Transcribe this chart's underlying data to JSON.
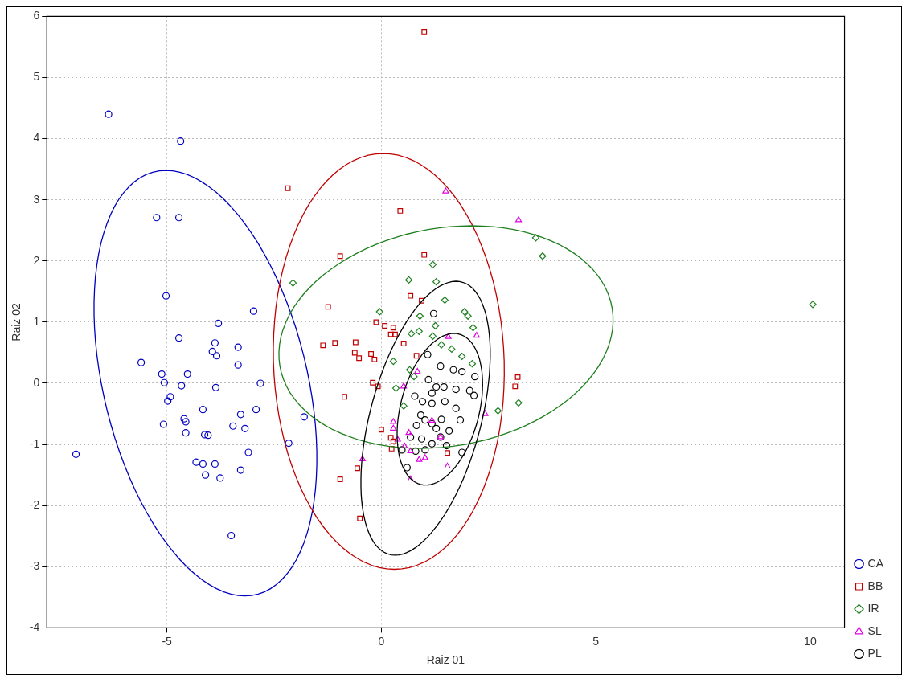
{
  "chart_data": {
    "type": "scatter",
    "xlabel": "Raiz 01",
    "ylabel": "Raiz 02",
    "xlim": [
      -7.8,
      10.8
    ],
    "ylim": [
      -4,
      6
    ],
    "xticks": [
      -5,
      0,
      5,
      10
    ],
    "yticks": [
      -4,
      -3,
      -2,
      -1,
      0,
      1,
      2,
      3,
      4,
      5,
      6
    ],
    "grid": true,
    "legend": "bottom right",
    "series": [
      {
        "name": "CA",
        "color": "#0000c0",
        "marker": "circle",
        "x": [
          -6.36,
          -4.68,
          -5.24,
          -4.72,
          -5.02,
          -2.98,
          -3.8,
          -4.72,
          -3.88,
          -3.34,
          -3.94,
          -3.84,
          -3.34,
          -5.6,
          -5.12,
          -4.52,
          -2.82,
          -5.06,
          -4.66,
          -3.86,
          -4.92,
          -4.98,
          -3.28,
          -2.92,
          -4.16,
          -4.6,
          -5.08,
          -4.56,
          -3.46,
          -3.18,
          -1.8,
          -4.56,
          -4.12,
          -4.04,
          -3.1,
          -7.12,
          -2.16,
          -4.32,
          -4.16,
          -3.88,
          -3.28,
          -4.1,
          -3.76,
          -3.5
        ],
        "values": [
          4.4,
          3.96,
          2.71,
          2.71,
          1.43,
          1.18,
          0.98,
          0.74,
          0.66,
          0.59,
          0.52,
          0.45,
          0.3,
          0.34,
          0.15,
          0.15,
          0,
          0.01,
          -0.04,
          -0.07,
          -0.22,
          -0.29,
          -0.51,
          -0.43,
          -0.43,
          -0.58,
          -0.67,
          -0.63,
          -0.7,
          -0.74,
          -0.55,
          -0.81,
          -0.84,
          -0.85,
          -1.13,
          -1.16,
          -0.98,
          -1.29,
          -1.32,
          -1.32,
          -1.42,
          -1.5,
          -1.55,
          -2.49
        ]
      },
      {
        "name": "BB",
        "color": "#c00000",
        "marker": "square",
        "x": [
          1.0,
          -2.18,
          0.44,
          1.0,
          -0.96,
          -1.24,
          0.68,
          0.94,
          -1.36,
          -1.08,
          -0.6,
          -0.12,
          0.08,
          0.28,
          -0.62,
          -0.52,
          -0.24,
          -0.16,
          0.22,
          0.32,
          -0.2,
          -0.08,
          -0.86,
          0,
          3.18,
          3.12,
          0.24,
          0.22,
          -0.96,
          -0.56,
          -0.5,
          1.54,
          0.28,
          0.52,
          0.82
        ],
        "values": [
          5.75,
          3.19,
          2.82,
          2.1,
          2.08,
          1.25,
          1.43,
          1.35,
          0.62,
          0.66,
          0.67,
          1.0,
          0.94,
          0.91,
          0.5,
          0.41,
          0.48,
          0.39,
          0.8,
          0.8,
          0.01,
          -0.05,
          -0.22,
          -0.76,
          0.1,
          -0.05,
          -1.07,
          -0.89,
          -1.57,
          -1.39,
          -2.21,
          -1.14,
          -0.95,
          0.65,
          0.45
        ]
      },
      {
        "name": "IR",
        "color": "#208020",
        "marker": "diamond",
        "x": [
          10.06,
          3.6,
          3.76,
          -2.06,
          1.2,
          0.64,
          1.28,
          -0.04,
          0.9,
          1.48,
          1.94,
          2.02,
          1.26,
          0.88,
          1.2,
          1.4,
          1.64,
          1.88,
          2.12,
          2.14,
          3.2,
          2.72,
          0.76,
          0.28,
          0.66,
          0.7,
          0.34,
          0.52
        ],
        "values": [
          1.29,
          2.38,
          2.08,
          1.64,
          1.94,
          1.69,
          1.66,
          1.17,
          1.1,
          1.36,
          1.17,
          1.1,
          0.94,
          0.85,
          0.77,
          0.63,
          0.56,
          0.44,
          0.32,
          0.91,
          -0.32,
          -0.45,
          0.11,
          0.36,
          0.22,
          0.81,
          -0.08,
          -0.37
        ]
      },
      {
        "name": "SL",
        "color": "#e000e0",
        "marker": "triangle",
        "x": [
          1.5,
          3.2,
          2.22,
          1.56,
          2.42,
          1.54,
          0.68,
          0.28,
          0.38,
          0.54,
          0.68,
          0.88,
          1.02,
          0.64,
          1.18,
          -0.44,
          0.52,
          0.28,
          0.84,
          1.38
        ],
        "values": [
          3.14,
          2.67,
          0.78,
          0.76,
          -0.5,
          -1.36,
          -1.57,
          -0.63,
          -0.92,
          -1.03,
          -1.11,
          -1.25,
          -1.22,
          -0.81,
          -0.61,
          -1.24,
          -0.05,
          -0.74,
          0.19,
          -0.88
        ]
      },
      {
        "name": "PL",
        "color": "#000000",
        "marker": "circle",
        "x": [
          1.22,
          1.08,
          1.38,
          1.68,
          1.88,
          1.1,
          1.28,
          1.46,
          1.18,
          1.74,
          2.18,
          2.06,
          2.16,
          0.78,
          0.96,
          1.18,
          1.48,
          1.74,
          1.84,
          0.92,
          1.02,
          1.18,
          1.4,
          1.28,
          1.58,
          0.82,
          0.68,
          0.94,
          1.38,
          0.48,
          0.8,
          1.18,
          0.6,
          1.88,
          1.02,
          1.52
        ],
        "values": [
          1.14,
          0.47,
          0.28,
          0.22,
          0.19,
          0.06,
          -0.06,
          -0.06,
          -0.16,
          -0.1,
          0.11,
          -0.12,
          -0.2,
          -0.21,
          -0.3,
          -0.33,
          -0.3,
          -0.41,
          -0.6,
          -0.52,
          -0.6,
          -0.66,
          -0.59,
          -0.74,
          -0.78,
          -0.69,
          -0.88,
          -0.91,
          -0.88,
          -1.09,
          -1.11,
          -0.99,
          -1.38,
          -1.13,
          -1.09,
          -1.02
        ]
      }
    ]
  }
}
